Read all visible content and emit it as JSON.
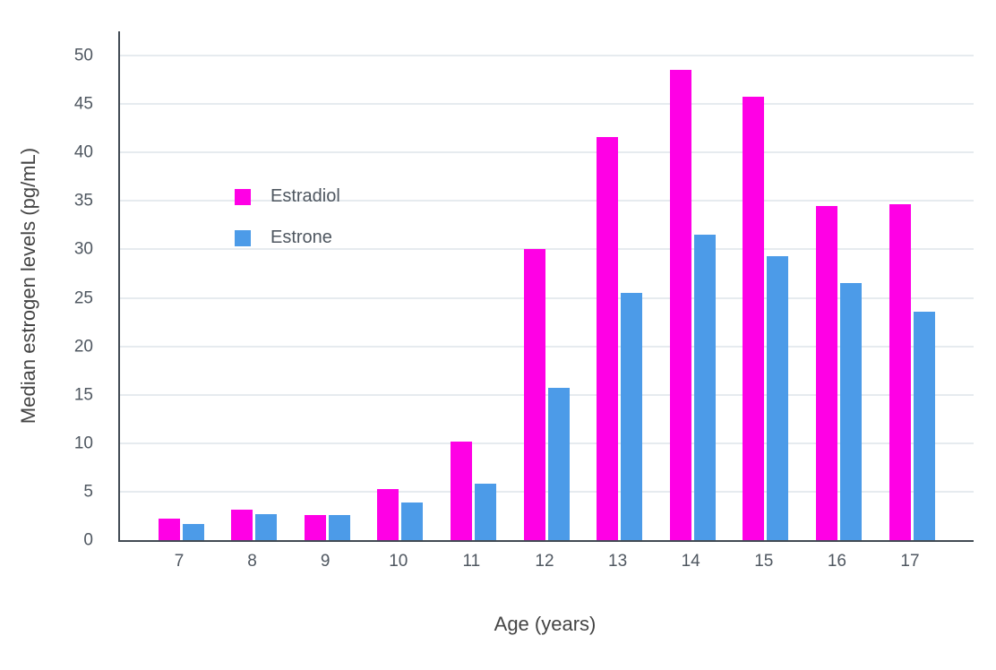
{
  "chart_data": {
    "type": "bar",
    "title": "",
    "xlabel": "Age (years)",
    "ylabel": "Median estrogen levels (pg/mL)",
    "categories": [
      "7",
      "8",
      "9",
      "10",
      "11",
      "12",
      "13",
      "14",
      "15",
      "16",
      "17"
    ],
    "series": [
      {
        "name": "Estradiol",
        "color": "#FF00E5",
        "values": [
          2.2,
          3.1,
          2.6,
          5.3,
          10.2,
          30.0,
          41.6,
          48.5,
          45.8,
          34.5,
          34.7
        ]
      },
      {
        "name": "Estrone",
        "color": "#4C9BE8",
        "values": [
          1.7,
          2.7,
          2.6,
          3.9,
          5.8,
          15.7,
          25.5,
          31.5,
          29.3,
          26.5,
          23.6
        ]
      }
    ],
    "ylim": [
      0,
      52.5
    ],
    "yticks": [
      0,
      5,
      10,
      15,
      20,
      25,
      30,
      35,
      40,
      45,
      50
    ],
    "grid": true,
    "legend_position": "inside-top-left",
    "colors": {
      "background": "#ffffff",
      "gridline": "#e6ebef",
      "axis_line": "#424b54",
      "tick_label": "#4f5760"
    }
  }
}
